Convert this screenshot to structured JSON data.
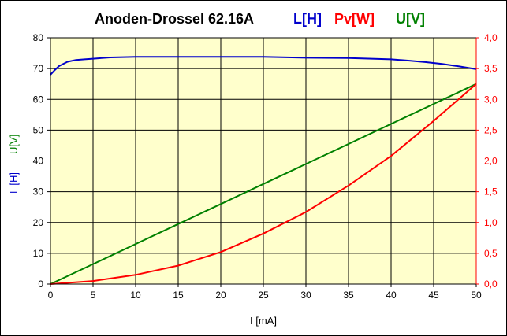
{
  "chart_data": {
    "type": "line",
    "title": "Anoden-Drossel 62.16A",
    "legend": [
      {
        "label": "L[H]",
        "color": "#0000cc"
      },
      {
        "label": "Pv[W]",
        "color": "#ff0000"
      },
      {
        "label": "U[V]",
        "color": "#008000"
      }
    ],
    "xlabel": "I [mA]",
    "ylabel_left_parts": [
      {
        "text": "L [H]",
        "color": "#0000cc"
      },
      {
        "text": "U[V]",
        "color": "#008000"
      }
    ],
    "xlim": [
      0,
      50
    ],
    "ylim_left": [
      0,
      80
    ],
    "ylim_right": [
      0,
      4.0
    ],
    "x_ticks": [
      "0",
      "5",
      "10",
      "15",
      "20",
      "25",
      "30",
      "35",
      "40",
      "45",
      "50"
    ],
    "y_left_ticks": [
      "0",
      "10",
      "20",
      "30",
      "40",
      "50",
      "60",
      "70",
      "80"
    ],
    "y_right_ticks": [
      "0,0",
      "0,5",
      "1,0",
      "1,5",
      "2,0",
      "2,5",
      "3,0",
      "3,5",
      "4,0"
    ],
    "grid": true,
    "background": "#ffffcc",
    "series": [
      {
        "name": "L[H]",
        "axis": "left",
        "color": "#0000cc",
        "x": [
          0,
          0.5,
          1,
          2,
          3,
          4,
          5,
          7,
          10,
          15,
          20,
          25,
          30,
          35,
          40,
          42,
          44,
          46,
          48,
          50
        ],
        "y": [
          68.0,
          69.5,
          70.8,
          72.2,
          72.8,
          73.0,
          73.2,
          73.6,
          73.8,
          73.8,
          73.8,
          73.8,
          73.5,
          73.4,
          73.0,
          72.6,
          72.1,
          71.5,
          70.7,
          69.8
        ]
      },
      {
        "name": "Pv[W]",
        "axis": "right",
        "color": "#ff0000",
        "x": [
          0,
          5,
          10,
          15,
          20,
          25,
          30,
          35,
          40,
          45,
          50
        ],
        "y": [
          0.0,
          0.05,
          0.15,
          0.3,
          0.52,
          0.82,
          1.17,
          1.6,
          2.08,
          2.65,
          3.25
        ]
      },
      {
        "name": "U[V]",
        "axis": "left",
        "color": "#008000",
        "x": [
          0,
          5,
          10,
          15,
          20,
          25,
          30,
          35,
          40,
          45,
          50
        ],
        "y": [
          0,
          6.5,
          13.0,
          19.5,
          26.0,
          32.5,
          39.0,
          45.5,
          52.0,
          58.5,
          65.0
        ]
      }
    ]
  }
}
